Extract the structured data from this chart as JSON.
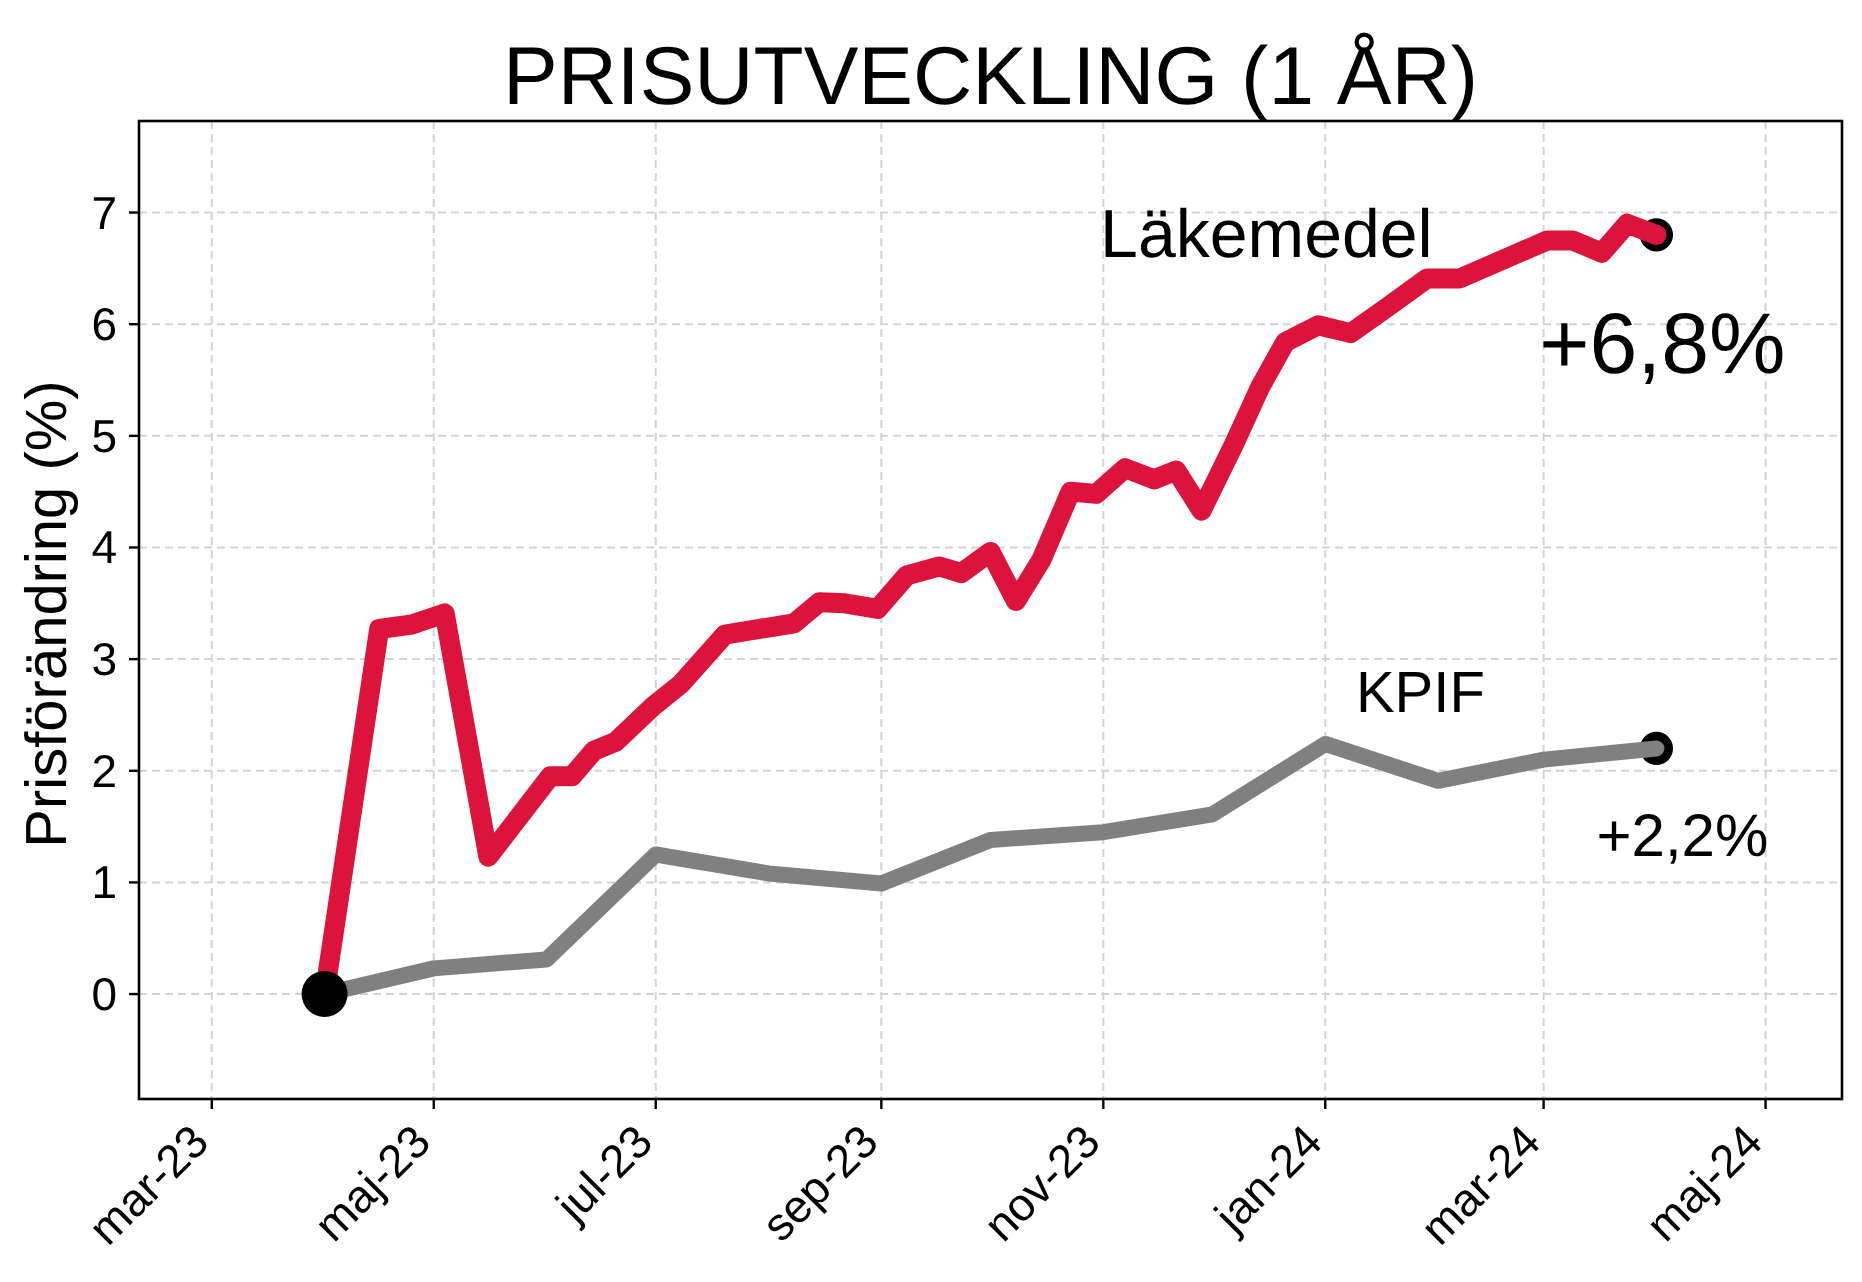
{
  "chart_data": {
    "type": "line",
    "title": "PRISUTVECKLING (1 ÅR)",
    "ylabel": "Prisförändring (%)",
    "xlim": [
      "2023-02-09",
      "2024-05-22"
    ],
    "xticks": [
      {
        "value": "2023-03-01",
        "label": "mar-23"
      },
      {
        "value": "2023-05-01",
        "label": "maj-23"
      },
      {
        "value": "2023-07-01",
        "label": "jul-23"
      },
      {
        "value": "2023-09-01",
        "label": "sep-23"
      },
      {
        "value": "2023-11-01",
        "label": "nov-23"
      },
      {
        "value": "2024-01-01",
        "label": "jan-24"
      },
      {
        "value": "2024-03-01",
        "label": "mar-24"
      },
      {
        "value": "2024-05-01",
        "label": "maj-24"
      }
    ],
    "ylim": [
      -0.94,
      7.82
    ],
    "yticks": [
      0,
      1,
      2,
      3,
      4,
      5,
      6,
      7
    ],
    "grid": true,
    "series": [
      {
        "type": "scatter",
        "color": "#000000",
        "marker": "circle",
        "x": [
          "2024-04-01",
          "2024-04-01"
        ],
        "values": [
          6.8,
          2.2
        ]
      },
      {
        "name": "Läkemedel",
        "color": "#dc143c",
        "x": [
          "2023-04-01",
          "2023-04-16",
          "2023-04-25",
          "2023-05-04",
          "2023-05-16",
          "2023-06-02",
          "2023-06-08",
          "2023-06-14",
          "2023-06-20",
          "2023-06-30",
          "2023-07-08",
          "2023-07-20",
          "2023-08-08",
          "2023-08-15",
          "2023-08-22",
          "2023-08-31",
          "2023-09-08",
          "2023-09-17",
          "2023-09-23",
          "2023-10-01",
          "2023-10-08",
          "2023-10-15",
          "2023-10-23",
          "2023-10-30",
          "2023-11-07",
          "2023-11-15",
          "2023-11-21",
          "2023-11-28",
          "2023-12-07",
          "2023-12-14",
          "2023-12-21",
          "2023-12-30",
          "2024-01-08",
          "2024-01-18",
          "2024-01-29",
          "2024-02-07",
          "2024-03-02",
          "2024-03-09",
          "2024-03-17",
          "2024-03-24",
          "2024-04-01"
        ],
        "values": [
          0,
          3.27,
          3.31,
          3.41,
          1.23,
          1.95,
          1.95,
          2.18,
          2.26,
          2.57,
          2.78,
          3.22,
          3.32,
          3.51,
          3.5,
          3.45,
          3.75,
          3.83,
          3.77,
          3.96,
          3.52,
          3.89,
          4.5,
          4.48,
          4.71,
          4.61,
          4.69,
          4.33,
          4.93,
          5.43,
          5.84,
          5.99,
          5.92,
          6.15,
          6.41,
          6.41,
          6.75,
          6.75,
          6.64,
          6.9,
          6.8
        ]
      },
      {
        "name": "KPIF",
        "color": "#808080",
        "x": [
          "2023-04-01",
          "2023-05-01",
          "2023-06-01",
          "2023-07-01",
          "2023-08-01",
          "2023-09-01",
          "2023-10-01",
          "2023-11-01",
          "2023-12-01",
          "2024-01-01",
          "2024-02-01",
          "2024-03-01",
          "2024-04-01"
        ],
        "values": [
          0,
          0.23,
          0.31,
          1.25,
          1.08,
          0.99,
          1.38,
          1.45,
          1.61,
          2.24,
          1.91,
          2.1,
          2.2
        ]
      },
      {
        "type": "scatter",
        "color": "#000000",
        "marker": "circle",
        "x": [
          "2023-04-01"
        ],
        "values": [
          0
        ]
      }
    ],
    "annotations": [
      {
        "text": "+6,8%",
        "x": "2024-04-01",
        "y": 6.8
      },
      {
        "text": "+2,2%",
        "x": "2024-04-01",
        "y": 2.2
      }
    ]
  }
}
